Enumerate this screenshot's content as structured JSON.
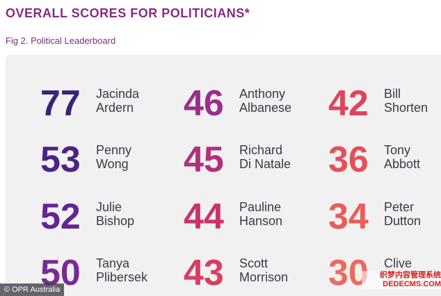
{
  "page": {
    "title": "OVERALL SCORES FOR POLITICIANS*",
    "subtitle": "Fig 2. Political Leaderboard",
    "source": "© OPR Australia",
    "watermark_line1": "织梦内容管理系统",
    "watermark_line2": "DEDECMS.COM"
  },
  "colors": {
    "title": "#8a2a84",
    "panel_bg": "#f1f1f1",
    "name_text": "#3a3a4a"
  },
  "chart_data": {
    "type": "table",
    "title": "OVERALL SCORES FOR POLITICIANS*",
    "subtitle": "Fig 2. Political Leaderboard",
    "entries": [
      {
        "score": "77",
        "name_line1": "Jacinda",
        "name_line2": "Ardern",
        "color": "#3a2277"
      },
      {
        "score": "53",
        "name_line1": "Penny",
        "name_line2": "Wong",
        "color": "#4e2384"
      },
      {
        "score": "52",
        "name_line1": "Julie",
        "name_line2": "Bishop",
        "color": "#632690"
      },
      {
        "score": "50",
        "name_line1": "Tanya",
        "name_line2": "Plibersek",
        "color": "#7b2a94"
      },
      {
        "score": "46",
        "name_line1": "Anthony",
        "name_line2": "Albanese",
        "color": "#9a2e8c"
      },
      {
        "score": "45",
        "name_line1": "Richard",
        "name_line2": "Di Natale",
        "color": "#b02f7d"
      },
      {
        "score": "44",
        "name_line1": "Pauline",
        "name_line2": "Hanson",
        "color": "#c9336a"
      },
      {
        "score": "43",
        "name_line1": "Scott",
        "name_line2": "Morrison",
        "color": "#d93d60"
      },
      {
        "score": "42",
        "name_line1": "Bill",
        "name_line2": "Shorten",
        "color": "#e0445a"
      },
      {
        "score": "36",
        "name_line1": "Tony",
        "name_line2": "Abbott",
        "color": "#e55058"
      },
      {
        "score": "34",
        "name_line1": "Peter",
        "name_line2": "Dutton",
        "color": "#e95d5a"
      },
      {
        "score": "30",
        "name_line1": "Clive",
        "name_line2": "",
        "color": "#ed6a5e"
      }
    ]
  }
}
